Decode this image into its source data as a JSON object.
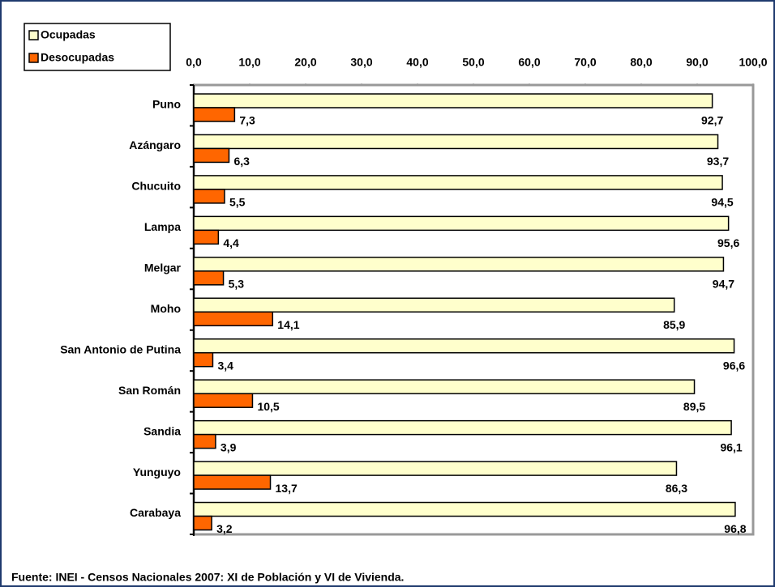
{
  "chart_data": {
    "type": "bar",
    "orientation": "horizontal",
    "categories": [
      "Puno",
      "Azángaro",
      "Chucuito",
      "Lampa",
      "Melgar",
      "Moho",
      "San Antonio de Putina",
      "San Román",
      "Sandia",
      "Yunguyo",
      "Carabaya"
    ],
    "series": [
      {
        "name": "Ocupadas",
        "color": "#ffffcc",
        "values": [
          92.7,
          93.7,
          94.5,
          95.6,
          94.7,
          85.9,
          96.6,
          89.5,
          96.1,
          86.3,
          96.8
        ],
        "value_labels": [
          "92,7",
          "93,7",
          "94,5",
          "95,6",
          "94,7",
          "85,9",
          "96,6",
          "89,5",
          "96,1",
          "86,3",
          "96,8"
        ]
      },
      {
        "name": "Desocupadas",
        "color": "#ff6600",
        "values": [
          7.3,
          6.3,
          5.5,
          4.4,
          5.3,
          14.1,
          3.4,
          10.5,
          3.9,
          13.7,
          3.2
        ],
        "value_labels": [
          "7,3",
          "6,3",
          "5,5",
          "4,4",
          "5,3",
          "14,1",
          "3,4",
          "10,5",
          "3,9",
          "13,7",
          "3,2"
        ]
      }
    ],
    "xlim": [
      0,
      100
    ],
    "xticks": [
      {
        "value": 0,
        "label": "0,0"
      },
      {
        "value": 10,
        "label": "10,0"
      },
      {
        "value": 20,
        "label": "20,0"
      },
      {
        "value": 30,
        "label": "30,0"
      },
      {
        "value": 40,
        "label": "40,0"
      },
      {
        "value": 50,
        "label": "50,0"
      },
      {
        "value": 60,
        "label": "60,0"
      },
      {
        "value": 70,
        "label": "70,0"
      },
      {
        "value": 80,
        "label": "80,0"
      },
      {
        "value": 90,
        "label": "90,0"
      },
      {
        "value": 100,
        "label": "100,0"
      }
    ],
    "legend": "top-left",
    "source": "Fuente: INEI - Censos Nacionales 2007: XI de Población y VI de Vivienda."
  }
}
